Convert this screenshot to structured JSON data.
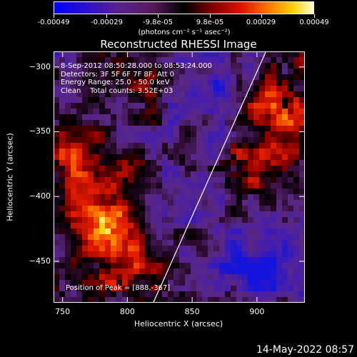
{
  "colorbar": {
    "tick_labels": [
      "-0.00049",
      "-0.00029",
      "-9.8e-05",
      "9.8e-05",
      "0.00029",
      "0.00049"
    ],
    "tick_values": [
      -0.00049,
      -0.00029,
      -9.8e-05,
      9.8e-05,
      0.00029,
      0.00049
    ],
    "unit_label": "(photons cm⁻² s⁻¹ asec⁻²)"
  },
  "title": "Reconstructed RHESSI Image",
  "info": {
    "line1": "8-Sep-2012 08:50:28.000 to 08:53:24.000",
    "line2": "Detectors: 3F 5F 6F 7F 8F, Att 0",
    "line3": "Energy Range: 25.0 - 50.0 keV",
    "line4": "Clean    Total counts: 3.52E+03"
  },
  "peak_text": "Position of Peak = [888,-367]",
  "x_axis": {
    "label": "Heliocentric X (arcsec)",
    "ticks": [
      750,
      800,
      850,
      900
    ],
    "range": [
      743,
      937
    ]
  },
  "y_axis": {
    "label": "Heliocentric Y (arcsec)",
    "ticks": [
      -300,
      -350,
      -400,
      -450
    ],
    "range": [
      -482,
      -288
    ]
  },
  "limb_line": {
    "x": [
      820,
      907
    ],
    "y": [
      -482,
      -288
    ]
  },
  "date_stamp": "14-May-2022 08:57",
  "colors": {
    "background": "#000000",
    "text": "#ffffff"
  }
}
